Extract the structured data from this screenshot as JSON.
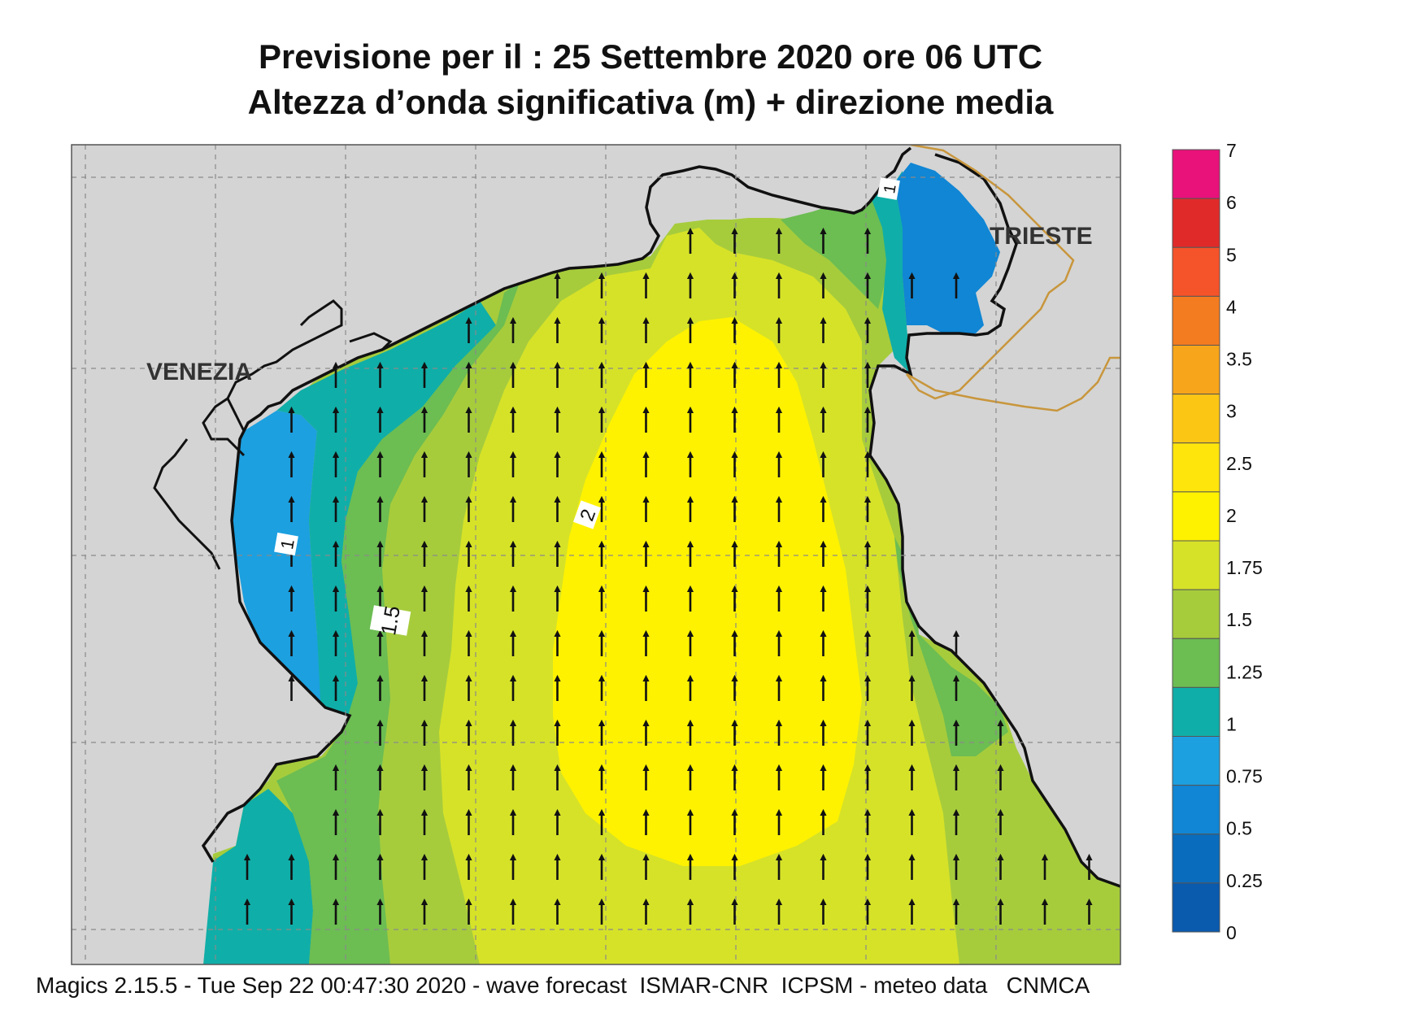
{
  "title": {
    "line1": "Previsione per il  :  25 Settembre 2020   ore 06 UTC",
    "line2": "Altezza d’onda significativa (m) + direzione media"
  },
  "map": {
    "place_labels": [
      "VENEZIA",
      "TRIESTE"
    ],
    "contour_labels": [
      "1",
      "1.5",
      "2",
      "1"
    ],
    "land_color": "#d4d4d4",
    "coast_color": "#111111",
    "border_color": "#c8963c",
    "wave_direction": "north"
  },
  "legend": {
    "ticks": [
      "7",
      "6",
      "5",
      "4",
      "3.5",
      "3",
      "2.5",
      "2",
      "1.75",
      "1.5",
      "1.25",
      "1",
      "0.75",
      "0.5",
      "0.25",
      "0"
    ],
    "colors": [
      "#e8127a",
      "#e02a2a",
      "#f5532a",
      "#f47c20",
      "#f7a51a",
      "#fbc614",
      "#fee60c",
      "#fef200",
      "#d6e228",
      "#a6cc3c",
      "#6cbd52",
      "#10aea8",
      "#1ca0e0",
      "#1086d4",
      "#0a6cbc",
      "#0a5aae"
    ]
  },
  "footer": "Magics 2.15.5 - Tue Sep 22 00:47:30 2020 - wave forecast  ISMAR-CNR  ICPSM - meteo data   CNMCA"
}
